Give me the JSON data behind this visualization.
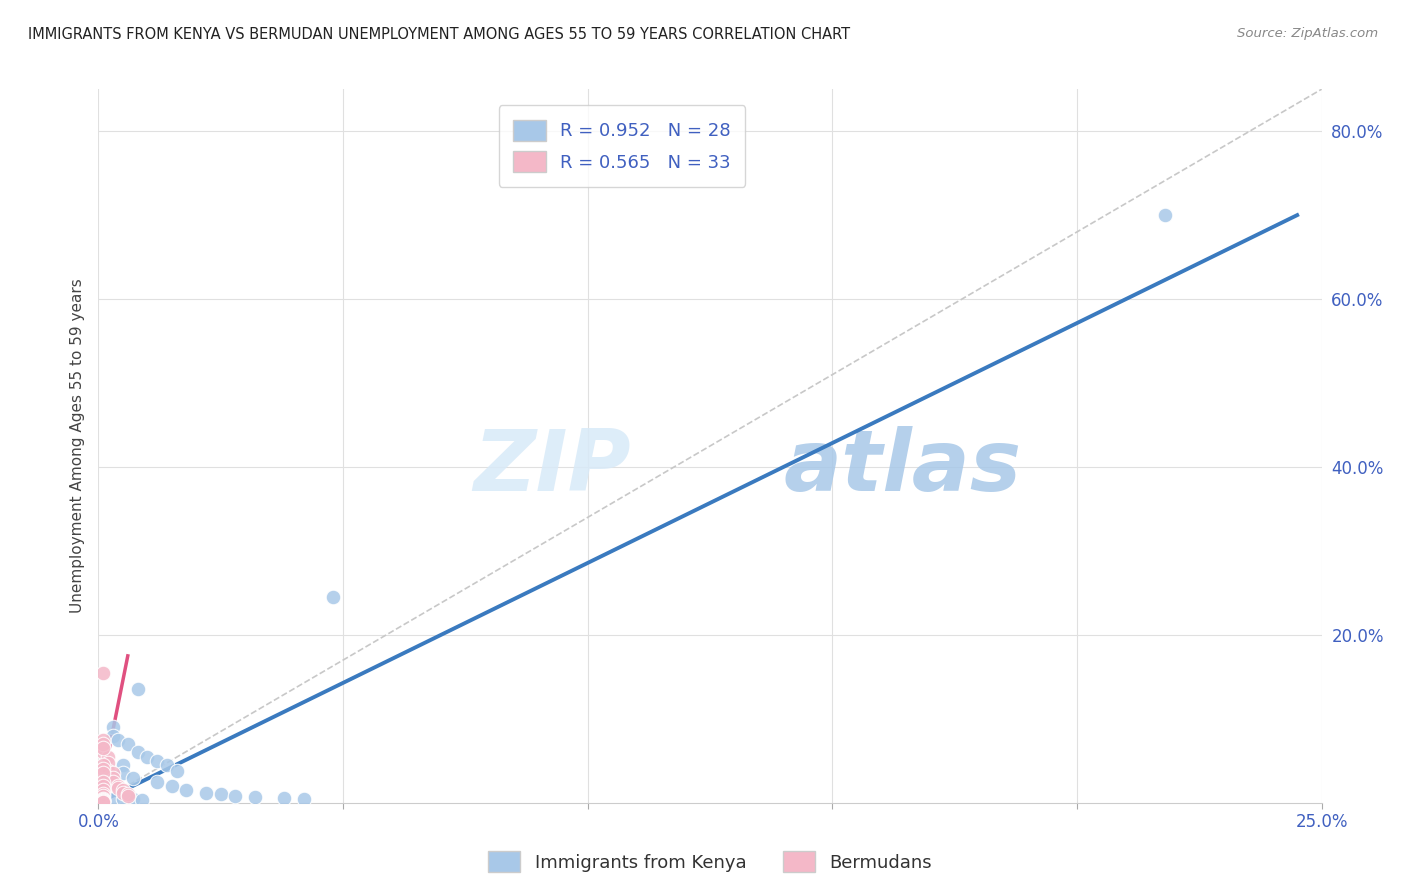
{
  "title": "IMMIGRANTS FROM KENYA VS BERMUDAN UNEMPLOYMENT AMONG AGES 55 TO 59 YEARS CORRELATION CHART",
  "source": "Source: ZipAtlas.com",
  "ylabel": "Unemployment Among Ages 55 to 59 years",
  "xlim": [
    0.0,
    0.25
  ],
  "ylim": [
    0.0,
    0.85
  ],
  "xticks": [
    0.0,
    0.05,
    0.1,
    0.15,
    0.2,
    0.25
  ],
  "yticks": [
    0.2,
    0.4,
    0.6,
    0.8
  ],
  "ytick_labels": [
    "20.0%",
    "40.0%",
    "60.0%",
    "80.0%"
  ],
  "xtick_labels": [
    "0.0%",
    "",
    "",
    "",
    "",
    "25.0%"
  ],
  "blue_R": 0.952,
  "blue_N": 28,
  "pink_R": 0.565,
  "pink_N": 33,
  "blue_scatter_x": [
    0.218,
    0.048,
    0.008,
    0.005,
    0.005,
    0.007,
    0.012,
    0.015,
    0.018,
    0.022,
    0.025,
    0.028,
    0.032,
    0.038,
    0.042,
    0.003,
    0.003,
    0.004,
    0.006,
    0.008,
    0.01,
    0.012,
    0.014,
    0.016,
    0.003,
    0.005,
    0.007,
    0.009
  ],
  "blue_scatter_y": [
    0.7,
    0.245,
    0.135,
    0.045,
    0.035,
    0.03,
    0.025,
    0.02,
    0.015,
    0.012,
    0.01,
    0.008,
    0.007,
    0.006,
    0.005,
    0.09,
    0.08,
    0.075,
    0.07,
    0.06,
    0.055,
    0.05,
    0.045,
    0.038,
    0.005,
    0.004,
    0.004,
    0.003
  ],
  "pink_scatter_x": [
    0.001,
    0.001,
    0.001,
    0.002,
    0.002,
    0.002,
    0.003,
    0.003,
    0.003,
    0.004,
    0.004,
    0.005,
    0.005,
    0.006,
    0.006,
    0.001,
    0.001,
    0.001,
    0.001,
    0.001,
    0.001,
    0.001,
    0.001,
    0.001,
    0.001,
    0.001,
    0.001,
    0.001,
    0.001,
    0.001,
    0.001,
    0.001,
    0.001
  ],
  "pink_scatter_y": [
    0.155,
    0.075,
    0.06,
    0.055,
    0.048,
    0.038,
    0.035,
    0.03,
    0.025,
    0.02,
    0.018,
    0.015,
    0.012,
    0.01,
    0.008,
    0.07,
    0.065,
    0.045,
    0.04,
    0.035,
    0.025,
    0.02,
    0.015,
    0.01,
    0.008,
    0.005,
    0.003,
    0.003,
    0.002,
    0.002,
    0.002,
    0.001,
    0.001
  ],
  "blue_line_x": [
    0.0,
    0.245
  ],
  "blue_line_y": [
    0.0,
    0.7
  ],
  "pink_line_x": [
    0.0,
    0.006
  ],
  "pink_line_y": [
    0.0,
    0.175
  ],
  "diag_line_x": [
    0.0,
    0.25
  ],
  "diag_line_y": [
    0.0,
    0.85
  ],
  "blue_color": "#a8c8e8",
  "pink_color": "#f4b8c8",
  "blue_line_color": "#3a7abf",
  "pink_line_color": "#e05080",
  "diag_color": "#c8c8c8",
  "watermark_zip": "ZIP",
  "watermark_atlas": "atlas",
  "background_color": "#ffffff",
  "grid_color": "#e0e0e0",
  "tick_color": "#4060c0",
  "legend_text_color": "#4060c0"
}
